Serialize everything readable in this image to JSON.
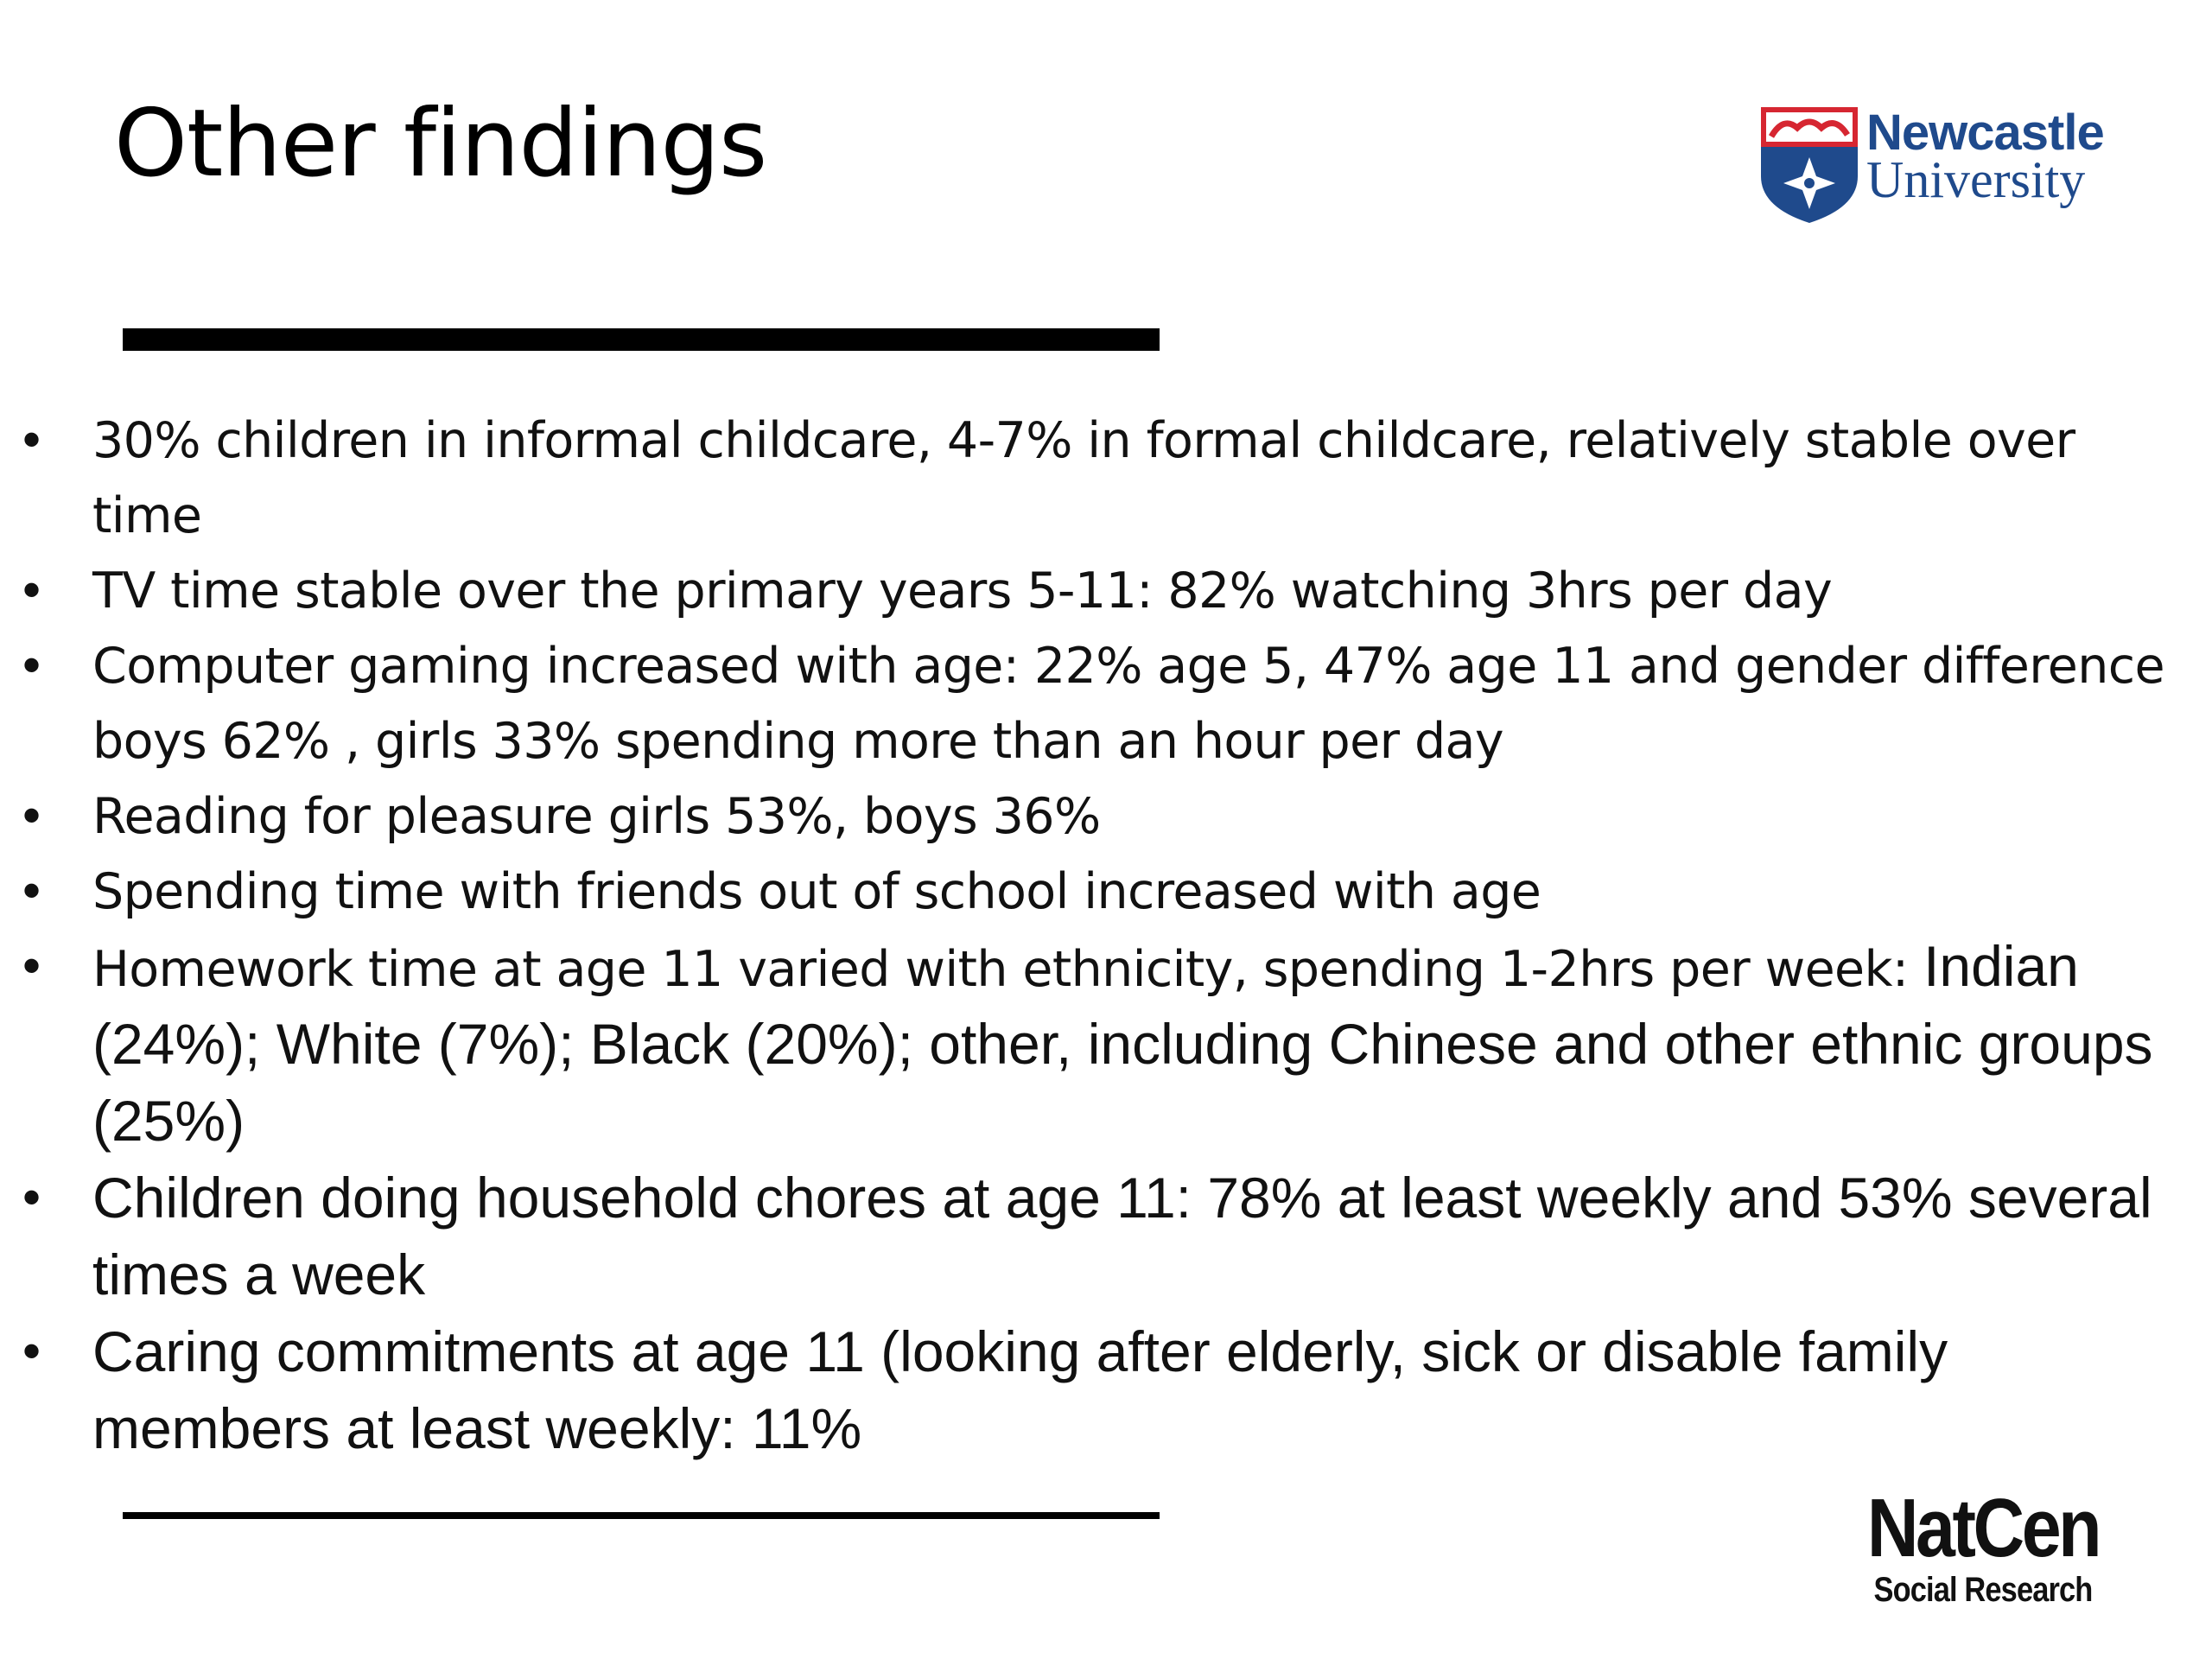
{
  "slide": {
    "title": "Other findings",
    "bullet_marker": "•",
    "bullets": [
      [
        "30% children in informal childcare, 4-7% in formal childcare, relatively stable over time"
      ],
      [
        "TV time stable over the primary years 5-11: 82% watching 3hrs per day"
      ],
      [
        "Computer gaming increased with age: 22% age 5, 47% age 11 and gender difference boys 62% , girls 33% spending more than an hour per day"
      ],
      [
        "Reading for pleasure girls 53%, boys 36%"
      ],
      [
        "Spending time with friends out of school increased with age"
      ],
      [
        "Homework time at age 11 varied with ethnicity, spending 1-2hrs per week: ",
        "Indian (24%); White (7%); Black (20%); other, including Chinese and other ethnic groups (25%)"
      ],
      [
        "",
        "Children doing household chores at age 11: 78% at least weekly and 53% several times a week"
      ],
      [
        "",
        "Caring commitments at age 11 (looking after elderly, sick or disable family members at least weekly: 11%"
      ]
    ]
  },
  "logos": {
    "newcastle": {
      "line1": "Newcastle",
      "line2": "University",
      "text_color": "#1f4a8c",
      "shield_color": "#1f4a8c",
      "banner_color": "#d62631"
    },
    "natcen": {
      "name": "NatCen",
      "tagline": "Social Research"
    }
  }
}
